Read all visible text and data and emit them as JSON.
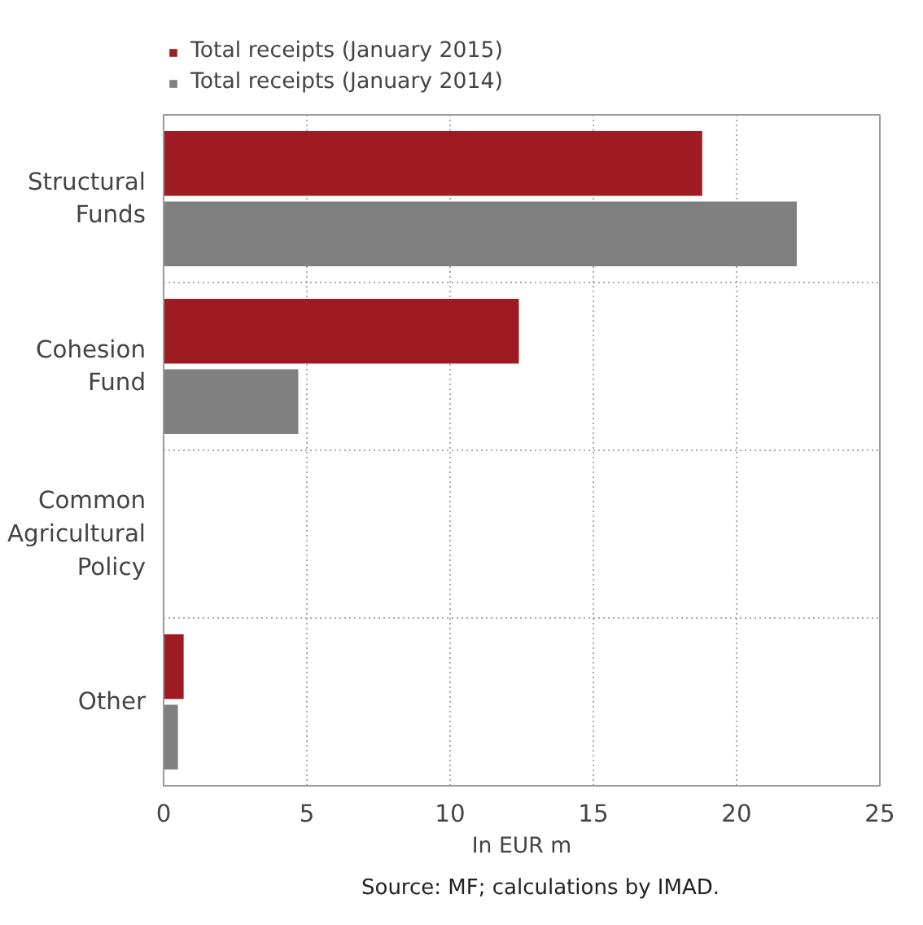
{
  "chart_data": {
    "type": "bar",
    "orientation": "horizontal",
    "categories": [
      "Structural Funds",
      "Cohesion Fund",
      "Common Agricultural Policy",
      "Other"
    ],
    "series": [
      {
        "name": "Total receipts (January 2015)",
        "color": "#9e1b22",
        "values": [
          18.8,
          12.4,
          0,
          0.7
        ]
      },
      {
        "name": "Total receipts (January 2014)",
        "color": "#808080",
        "values": [
          22.1,
          4.7,
          0,
          0.5
        ]
      }
    ],
    "xlim": [
      0,
      25
    ],
    "xticks": [
      0,
      5,
      10,
      15,
      20,
      25
    ],
    "xlabel": "In EUR m",
    "annotations": [
      "Source: MF; calculations by IMAD."
    ],
    "grid": true,
    "legend": "top"
  }
}
